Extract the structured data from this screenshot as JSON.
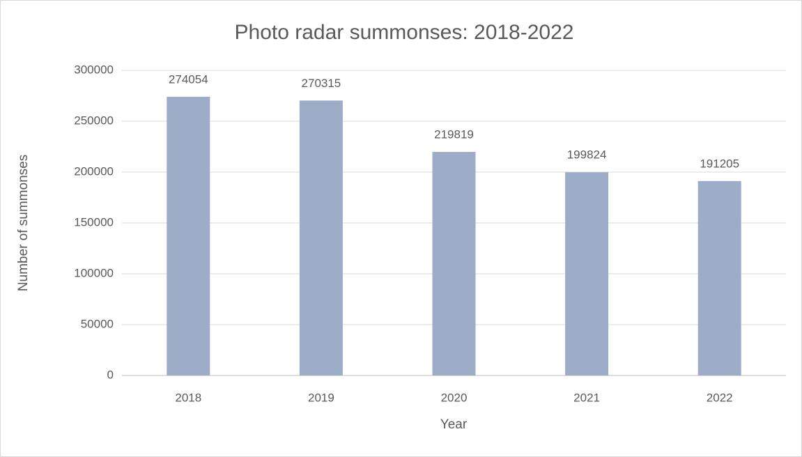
{
  "chart_data": {
    "type": "bar",
    "title": "Photo radar summonses: 2018-2022",
    "x_label": "Year",
    "y_label": "Number of summonses",
    "categories": [
      "2018",
      "2019",
      "2020",
      "2021",
      "2022"
    ],
    "values": [
      274054,
      270315,
      219819,
      199824,
      191205
    ],
    "color": "#9dadc8",
    "ylim": [
      0,
      300000
    ],
    "yticks": [
      0,
      50000,
      100000,
      150000,
      200000,
      250000,
      300000
    ],
    "grid": true
  }
}
